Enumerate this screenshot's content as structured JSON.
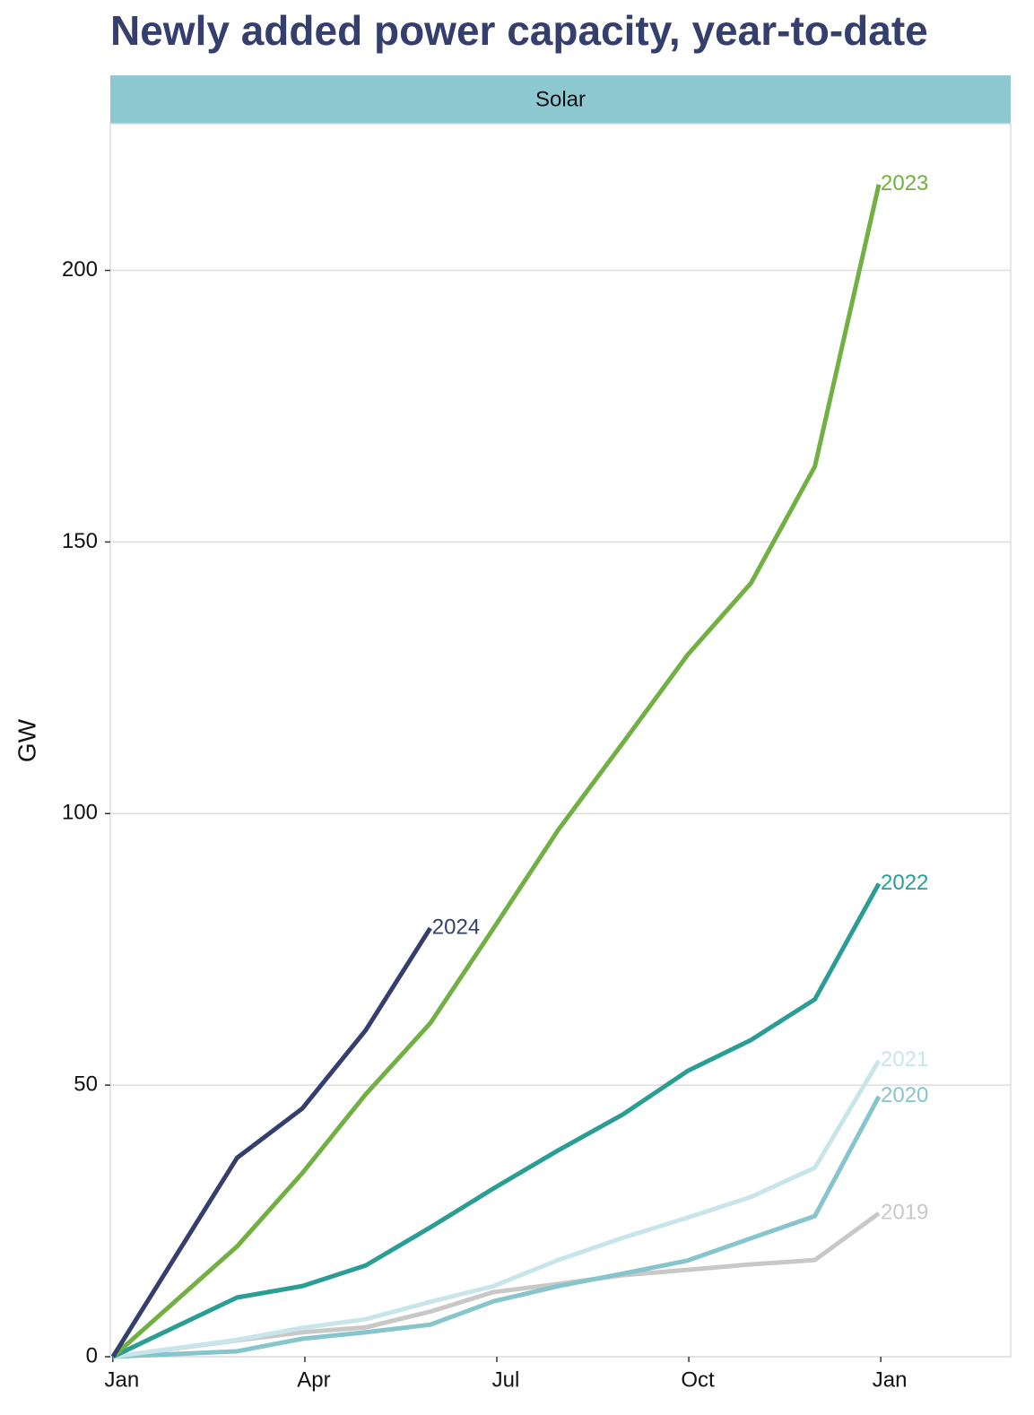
{
  "chart_data": {
    "type": "line",
    "title": "Newly added power capacity, year-to-date",
    "facet": "Solar",
    "ylabel": "GW",
    "x": [
      0,
      1.94,
      2.96,
      3.95,
      4.96,
      5.95,
      6.96,
      7.97,
      8.98,
      9.97,
      10.97,
      11.97
    ],
    "xlim": [
      -0.04,
      14.03
    ],
    "xticks": [
      {
        "value": 0,
        "label": "Jan"
      },
      {
        "value": 3,
        "label": "Apr"
      },
      {
        "value": 6,
        "label": "Jul"
      },
      {
        "value": 9,
        "label": "Oct"
      },
      {
        "value": 12,
        "label": "Jan"
      }
    ],
    "ylim": [
      0,
      227
    ],
    "yticks": [
      0,
      50,
      100,
      150,
      200
    ],
    "grid": true,
    "series": [
      {
        "name": "2019",
        "color": "#c8c8c8",
        "values": [
          0,
          3,
          4.5,
          5.4,
          8.3,
          11.9,
          13.4,
          15,
          16,
          17,
          17.8,
          26.4
        ]
      },
      {
        "name": "2020",
        "color": "#86c5cc",
        "values": [
          0,
          1,
          3.3,
          4.5,
          5.9,
          10.2,
          13,
          15.3,
          17.7,
          21.8,
          25.9,
          47.9
        ]
      },
      {
        "name": "2021",
        "color": "#c8e6ea",
        "values": [
          0,
          3.1,
          5.3,
          6.9,
          10.1,
          13,
          17.8,
          21.9,
          25.6,
          29.4,
          34.8,
          54.5
        ]
      },
      {
        "name": "2022",
        "color": "#2a9d95",
        "values": [
          0,
          10.9,
          13,
          16.8,
          23.8,
          31,
          38,
          44.6,
          52.6,
          58.3,
          65.8,
          87.1
        ]
      },
      {
        "name": "2023",
        "color": "#72b043",
        "values": [
          0,
          20.3,
          33.8,
          48.3,
          61.4,
          78.9,
          97,
          113,
          129.2,
          142.4,
          163.9,
          215.8
        ]
      },
      {
        "name": "2024",
        "color": "#343f6e",
        "values": [
          0,
          36.6,
          45.7,
          60.1,
          78.9,
          null,
          null,
          null,
          null,
          null,
          null,
          null
        ]
      }
    ]
  }
}
